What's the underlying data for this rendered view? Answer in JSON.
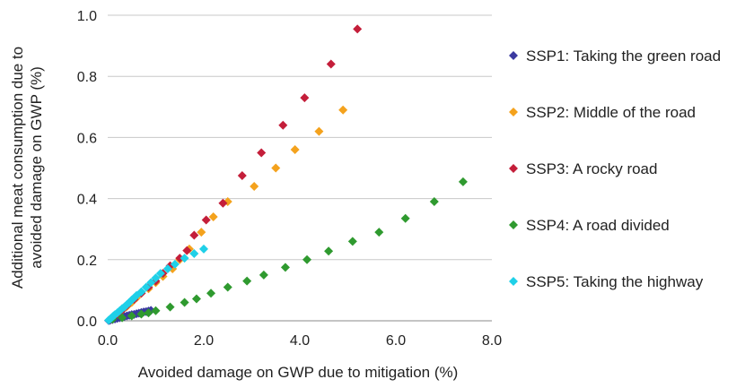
{
  "chart_data": {
    "type": "scatter",
    "title": "",
    "xlabel": "Avoided damage on GWP due to mitigation (%)",
    "ylabel_lines": [
      "Additional meat consumption due to",
      "avoided damage on GWP (%)"
    ],
    "xlim": [
      0,
      8
    ],
    "ylim": [
      0,
      1
    ],
    "x_ticks": [
      "0.0",
      "2.0",
      "4.0",
      "6.0",
      "8.0"
    ],
    "y_ticks": [
      "0.0",
      "0.2",
      "0.4",
      "0.6",
      "0.8",
      "1.0"
    ],
    "x_tick_values": [
      0,
      2,
      4,
      6,
      8
    ],
    "y_tick_values": [
      0,
      0.2,
      0.4,
      0.6,
      0.8,
      1.0
    ],
    "grid": "horizontal",
    "legend_position": "right",
    "series": [
      {
        "name": "SSP1: Taking the green road",
        "color": "#3b3aa0",
        "points": [
          [
            0.02,
            0.0008
          ],
          [
            0.05,
            0.002
          ],
          [
            0.1,
            0.004
          ],
          [
            0.15,
            0.006
          ],
          [
            0.2,
            0.008
          ],
          [
            0.25,
            0.01
          ],
          [
            0.3,
            0.012
          ],
          [
            0.35,
            0.014
          ],
          [
            0.4,
            0.016
          ],
          [
            0.45,
            0.018
          ],
          [
            0.5,
            0.02
          ],
          [
            0.55,
            0.021
          ],
          [
            0.6,
            0.023
          ],
          [
            0.65,
            0.025
          ],
          [
            0.7,
            0.027
          ],
          [
            0.75,
            0.029
          ],
          [
            0.8,
            0.03
          ],
          [
            0.85,
            0.032
          ],
          [
            0.9,
            0.034
          ]
        ]
      },
      {
        "name": "SSP2: Middle of the road",
        "color": "#f4a21d",
        "points": [
          [
            0.05,
            0.005
          ],
          [
            0.1,
            0.011
          ],
          [
            0.2,
            0.022
          ],
          [
            0.3,
            0.034
          ],
          [
            0.4,
            0.047
          ],
          [
            0.5,
            0.06
          ],
          [
            0.6,
            0.075
          ],
          [
            0.7,
            0.09
          ],
          [
            0.85,
            0.105
          ],
          [
            1.0,
            0.125
          ],
          [
            1.15,
            0.145
          ],
          [
            1.35,
            0.17
          ],
          [
            1.5,
            0.2
          ],
          [
            1.7,
            0.235
          ],
          [
            1.95,
            0.29
          ],
          [
            2.2,
            0.34
          ],
          [
            2.5,
            0.39
          ],
          [
            3.05,
            0.44
          ],
          [
            3.5,
            0.5
          ],
          [
            3.9,
            0.56
          ],
          [
            4.4,
            0.62
          ],
          [
            4.9,
            0.69
          ]
        ]
      },
      {
        "name": "SSP3: A rocky road",
        "color": "#c41e3a",
        "points": [
          [
            0.05,
            0.005
          ],
          [
            0.1,
            0.011
          ],
          [
            0.2,
            0.022
          ],
          [
            0.3,
            0.035
          ],
          [
            0.4,
            0.05
          ],
          [
            0.55,
            0.07
          ],
          [
            0.7,
            0.09
          ],
          [
            0.85,
            0.11
          ],
          [
            1.0,
            0.13
          ],
          [
            1.15,
            0.155
          ],
          [
            1.3,
            0.18
          ],
          [
            1.5,
            0.205
          ],
          [
            1.65,
            0.23
          ],
          [
            1.8,
            0.28
          ],
          [
            2.05,
            0.33
          ],
          [
            2.4,
            0.385
          ],
          [
            2.8,
            0.475
          ],
          [
            3.2,
            0.55
          ],
          [
            3.65,
            0.64
          ],
          [
            4.1,
            0.73
          ],
          [
            4.65,
            0.84
          ],
          [
            5.2,
            0.955
          ]
        ]
      },
      {
        "name": "SSP4: A road divided",
        "color": "#2f9a2f",
        "points": [
          [
            0.1,
            0.005
          ],
          [
            0.3,
            0.01
          ],
          [
            0.5,
            0.016
          ],
          [
            0.7,
            0.022
          ],
          [
            0.85,
            0.026
          ],
          [
            1.0,
            0.033
          ],
          [
            1.3,
            0.045
          ],
          [
            1.6,
            0.06
          ],
          [
            1.85,
            0.072
          ],
          [
            2.15,
            0.09
          ],
          [
            2.5,
            0.11
          ],
          [
            2.9,
            0.13
          ],
          [
            3.25,
            0.15
          ],
          [
            3.7,
            0.175
          ],
          [
            4.15,
            0.2
          ],
          [
            4.6,
            0.228
          ],
          [
            5.1,
            0.26
          ],
          [
            5.65,
            0.29
          ],
          [
            6.2,
            0.335
          ],
          [
            6.8,
            0.39
          ],
          [
            7.4,
            0.455
          ]
        ]
      },
      {
        "name": "SSP5: Taking the highway",
        "color": "#1fd0e8",
        "points": [
          [
            0.02,
            0.002
          ],
          [
            0.05,
            0.006
          ],
          [
            0.08,
            0.01
          ],
          [
            0.12,
            0.016
          ],
          [
            0.15,
            0.02
          ],
          [
            0.2,
            0.026
          ],
          [
            0.25,
            0.033
          ],
          [
            0.3,
            0.04
          ],
          [
            0.35,
            0.046
          ],
          [
            0.4,
            0.053
          ],
          [
            0.45,
            0.06
          ],
          [
            0.5,
            0.068
          ],
          [
            0.55,
            0.075
          ],
          [
            0.6,
            0.083
          ],
          [
            0.7,
            0.095
          ],
          [
            0.8,
            0.11
          ],
          [
            0.9,
            0.125
          ],
          [
            1.0,
            0.14
          ],
          [
            1.1,
            0.155
          ],
          [
            1.25,
            0.17
          ],
          [
            1.4,
            0.185
          ],
          [
            1.6,
            0.205
          ],
          [
            1.8,
            0.22
          ],
          [
            2.0,
            0.235
          ]
        ]
      }
    ]
  }
}
